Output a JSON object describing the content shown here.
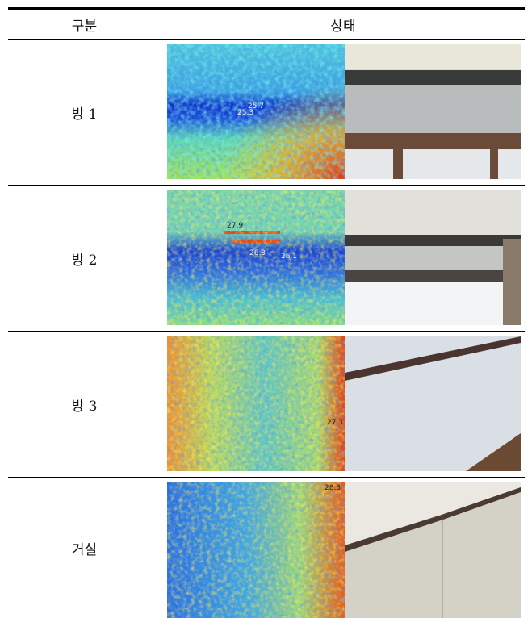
{
  "table": {
    "header": [
      "구분",
      "상태"
    ],
    "rows": [
      {
        "label": "방 1",
        "thermal_labels": [
          "25.7",
          "25.3"
        ]
      },
      {
        "label": "방 2",
        "thermal_labels": [
          "27.9",
          "26.3",
          "26.1"
        ]
      },
      {
        "label": "방 3",
        "thermal_labels": [
          "27.3"
        ]
      },
      {
        "label": "거실",
        "thermal_labels": [
          "28.3"
        ]
      }
    ]
  }
}
